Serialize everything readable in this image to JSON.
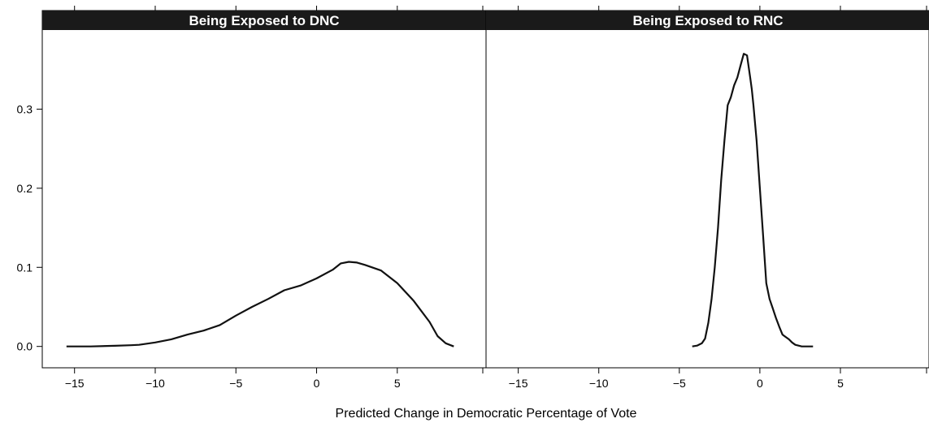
{
  "chart_data": {
    "type": "line",
    "xlabel": "Predicted Change in Democratic Percentage of Vote",
    "ylabel": "",
    "xlim": [
      -17,
      10.5
    ],
    "ylim": [
      -0.027,
      0.4
    ],
    "x_ticks": [
      -15,
      -10,
      -5,
      0,
      5
    ],
    "x_tick_labels": [
      "−15",
      "−10",
      "−5",
      "0",
      "5"
    ],
    "y_ticks": [
      0.0,
      0.1,
      0.2,
      0.3
    ],
    "y_tick_labels": [
      "0.0",
      "0.1",
      "0.2",
      "0.3"
    ],
    "grid": false,
    "panels": [
      {
        "title": "Being Exposed to DNC",
        "series": [
          {
            "x": [
              -15.5,
              -14,
              -12.5,
              -11.5,
              -11,
              -10,
              -9,
              -8,
              -7,
              -6,
              -5,
              -4,
              -3,
              -2,
              -1,
              0,
              1,
              1.5,
              2,
              2.5,
              3,
              4,
              5,
              6,
              7,
              7.5,
              8,
              8.5
            ],
            "y": [
              0.0,
              0.0,
              0.0008,
              0.0015,
              0.002,
              0.005,
              0.009,
              0.015,
              0.02,
              0.027,
              0.039,
              0.05,
              0.06,
              0.071,
              0.077,
              0.086,
              0.097,
              0.105,
              0.107,
              0.106,
              0.103,
              0.096,
              0.08,
              0.058,
              0.031,
              0.013,
              0.004,
              0.0
            ]
          }
        ]
      },
      {
        "title": "Being Exposed to RNC",
        "series": [
          {
            "x": [
              -4.2,
              -3.9,
              -3.6,
              -3.4,
              -3.2,
              -3.0,
              -2.8,
              -2.6,
              -2.4,
              -2.2,
              -2.0,
              -1.8,
              -1.6,
              -1.4,
              -1.2,
              -1.0,
              -0.8,
              -0.6,
              -0.5,
              -0.4,
              -0.2,
              0.0,
              0.2,
              0.4,
              0.6,
              0.8,
              1.0,
              1.2,
              1.4,
              1.6,
              1.8,
              2.0,
              2.2,
              2.4,
              2.6,
              2.8,
              3.0,
              3.3
            ],
            "y": [
              0.0,
              0.001,
              0.004,
              0.01,
              0.03,
              0.06,
              0.1,
              0.15,
              0.21,
              0.26,
              0.305,
              0.315,
              0.33,
              0.34,
              0.355,
              0.37,
              0.368,
              0.34,
              0.325,
              0.305,
              0.26,
              0.2,
              0.14,
              0.08,
              0.06,
              0.048,
              0.036,
              0.025,
              0.015,
              0.012,
              0.009,
              0.005,
              0.002,
              0.001,
              0.0,
              0.0,
              0.0,
              0.0
            ]
          }
        ]
      }
    ]
  }
}
